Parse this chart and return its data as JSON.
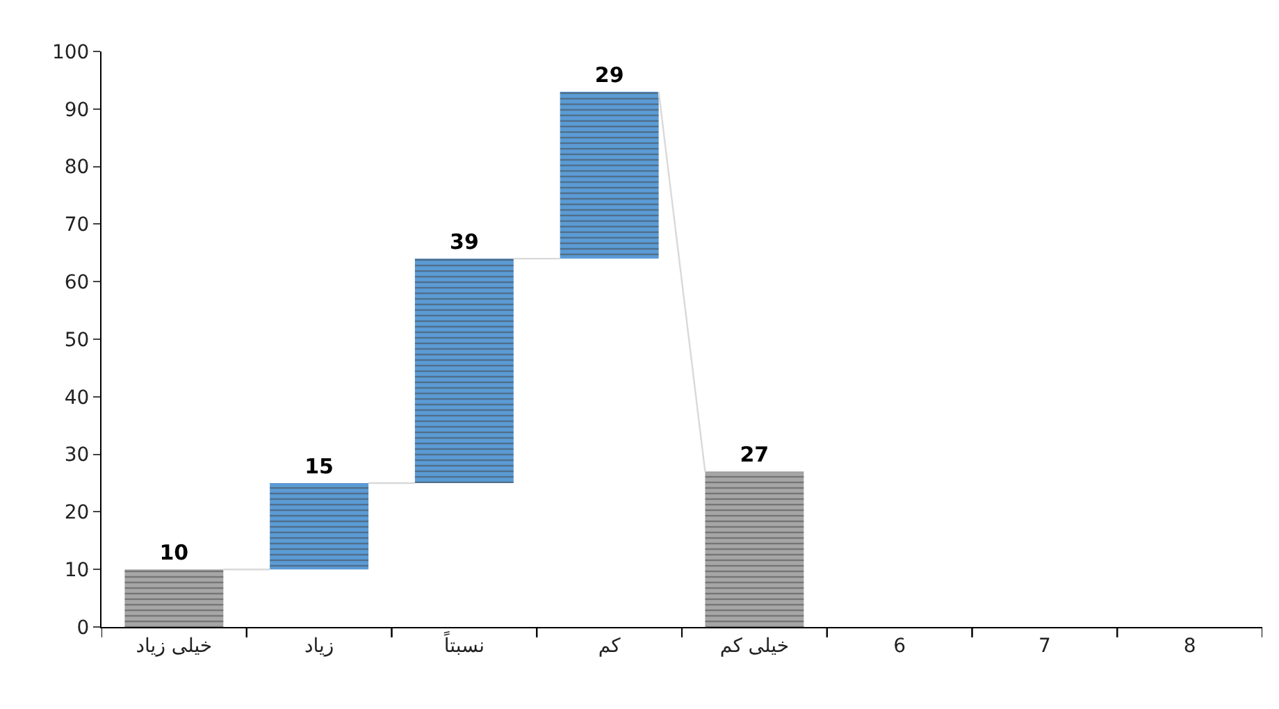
{
  "chart_data": {
    "type": "bar",
    "x": [
      1,
      2,
      3,
      4,
      5
    ],
    "xlim": [
      0.5,
      8.5
    ],
    "xticks": [
      {
        "value": 1,
        "label": "خیلی زیاد"
      },
      {
        "value": 2,
        "label": "زیاد"
      },
      {
        "value": 3,
        "label": "نسبتاً"
      },
      {
        "value": 4,
        "label": "کم"
      },
      {
        "value": 5,
        "label": "خیلی کم"
      },
      6,
      7,
      8
    ],
    "values": [
      10,
      15,
      39,
      29,
      27
    ],
    "base": [
      0,
      10,
      25,
      64,
      0
    ],
    "colors": [
      "#a6a6a6",
      "#5b9bd5",
      "#5b9bd5",
      "#5b9bd5",
      "#a6a6a6"
    ],
    "series": [
      {
        "type": "line",
        "color": "#d9d9d9",
        "x": [
          1.34,
          1.66,
          null,
          2.34,
          2.66,
          null,
          3.34,
          3.66,
          null,
          4.34,
          4.66
        ],
        "values": [
          10,
          10,
          null,
          25,
          25,
          null,
          64,
          64,
          null,
          93,
          27
        ],
        "value_labels": [
          null,
          null,
          null,
          null,
          null,
          null,
          null,
          null,
          null,
          null,
          null
        ]
      }
    ],
    "ylim": [
      0,
      100
    ],
    "yticks": [
      0,
      10,
      20,
      30,
      40,
      50,
      60,
      70,
      80,
      90,
      100
    ],
    "data_labels": true
  }
}
